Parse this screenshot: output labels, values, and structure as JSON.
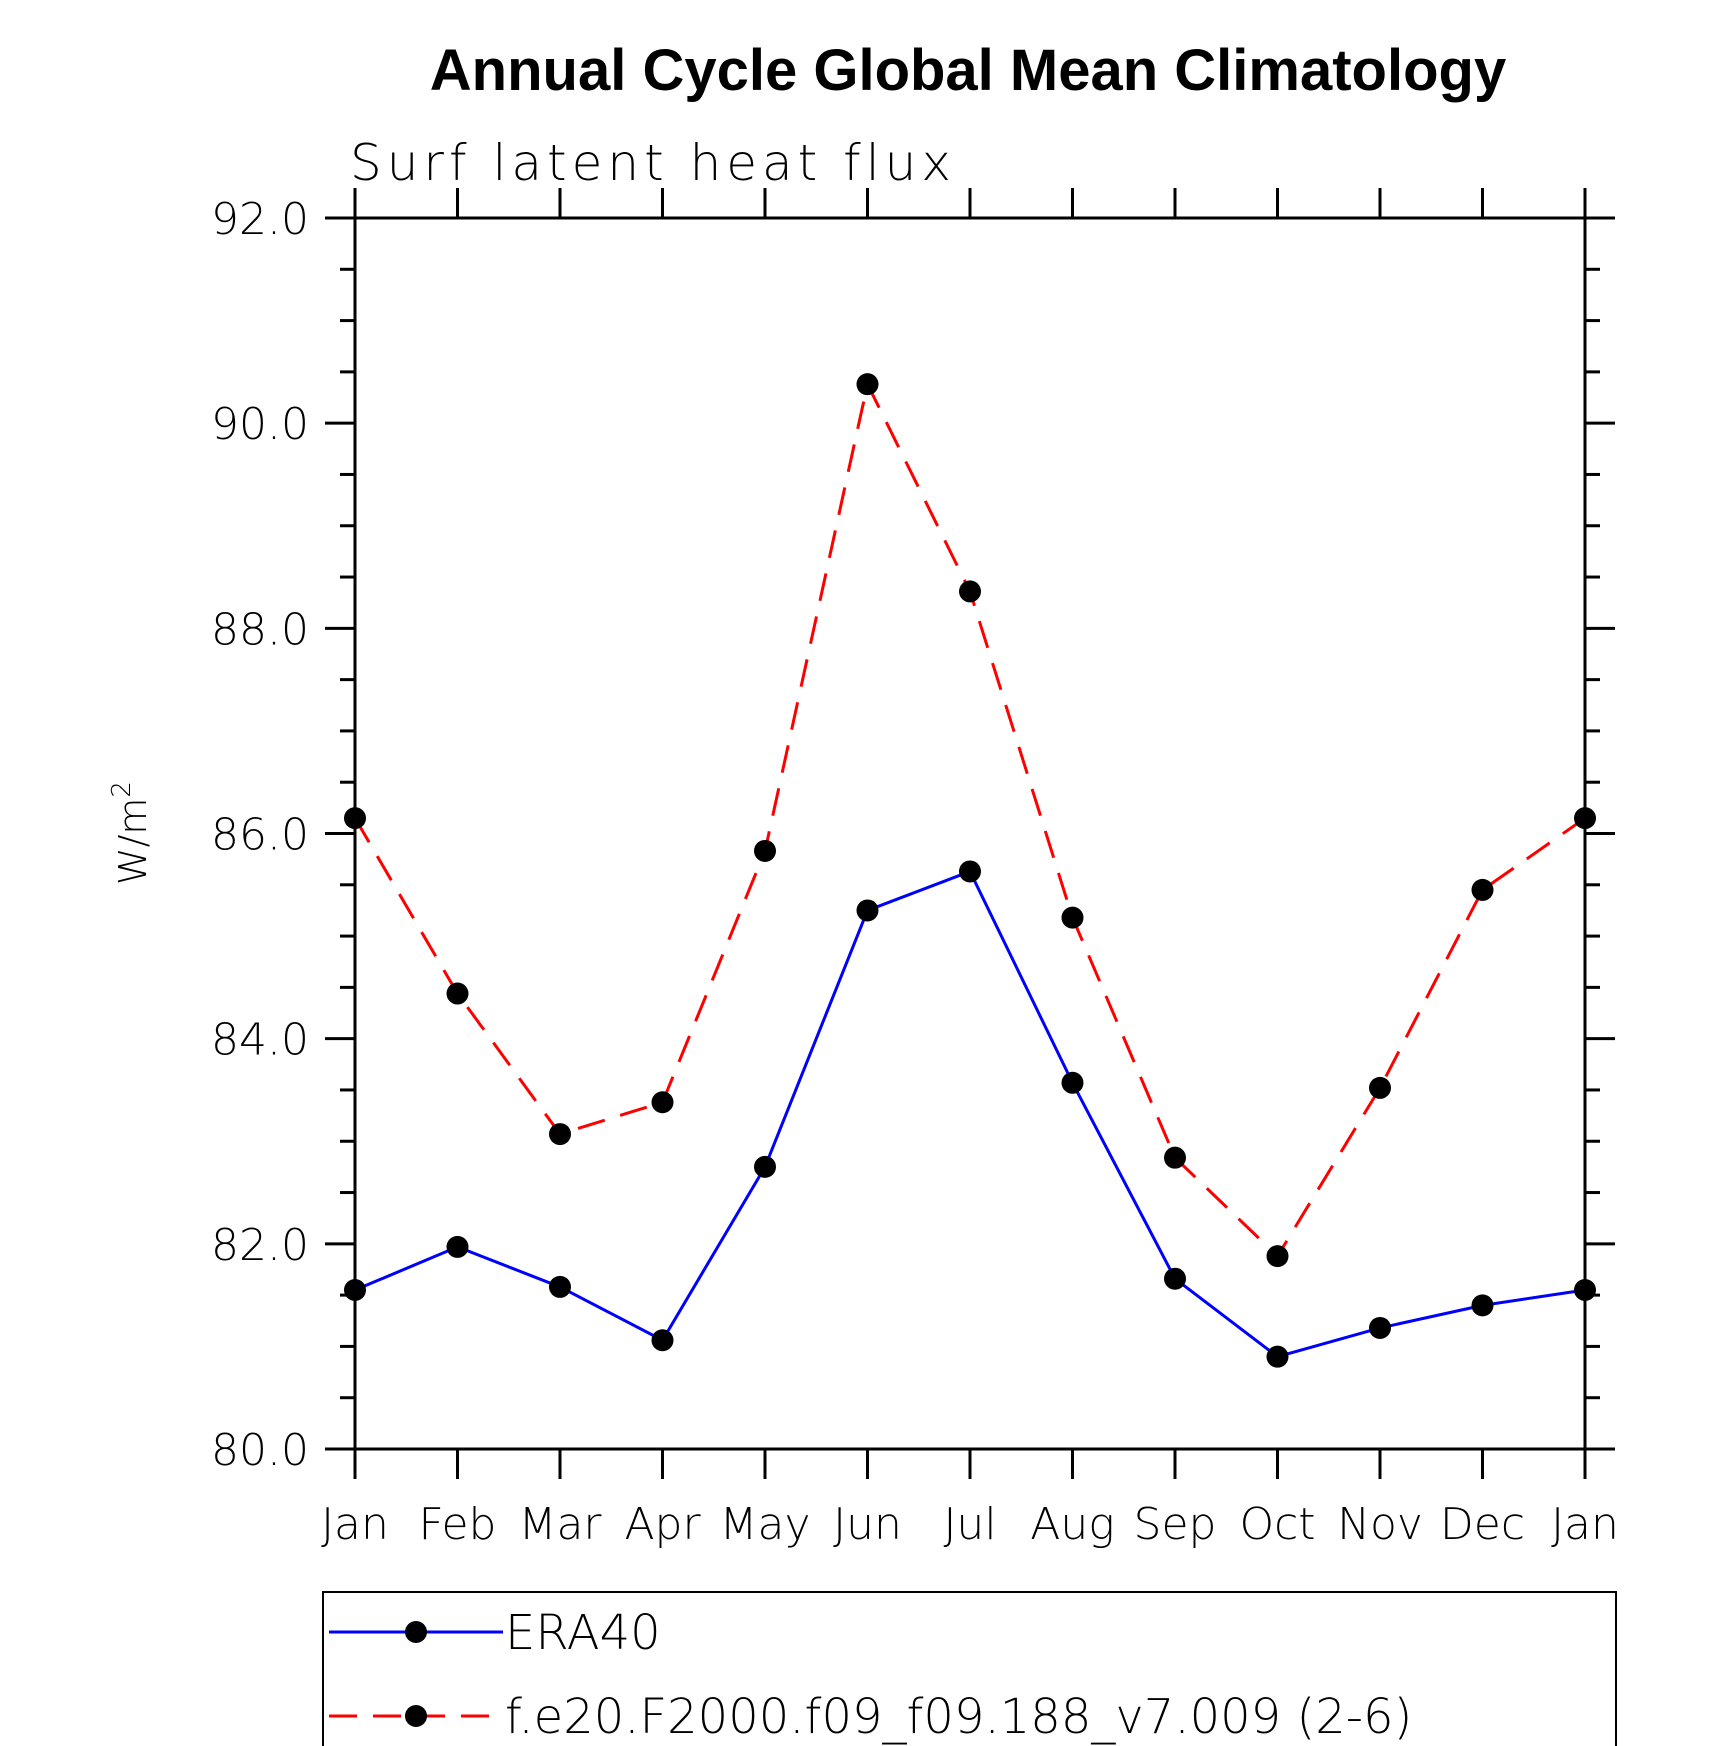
{
  "chart_data": {
    "type": "line",
    "title": "Annual Cycle Global Mean Climatology",
    "subtitle": "Surf latent heat flux",
    "xlabel": "",
    "ylabel": "W/m",
    "ylabel_superscript": "2",
    "categories": [
      "Jan",
      "Feb",
      "Mar",
      "Apr",
      "May",
      "Jun",
      "Jul",
      "Aug",
      "Sep",
      "Oct",
      "Nov",
      "Dec",
      "Jan"
    ],
    "ylim": [
      80.0,
      92.0
    ],
    "yticks": [
      "80.0",
      "82.0",
      "84.0",
      "86.0",
      "88.0",
      "90.0",
      "92.0"
    ],
    "grid": false,
    "legend_position": "bottom",
    "series": [
      {
        "name": "ERA40",
        "color": "#0000ff",
        "line_style": "solid",
        "marker": "filled-circle",
        "values": [
          81.55,
          81.97,
          81.58,
          81.06,
          82.75,
          85.25,
          85.63,
          83.57,
          81.66,
          80.9,
          81.18,
          81.4,
          81.55
        ]
      },
      {
        "name": "f.e20.F2000.f09_f09.188_v7.009 (2-6)",
        "color": "#ff0000",
        "line_style": "dashed",
        "marker": "filled-circle",
        "values": [
          86.15,
          84.44,
          83.07,
          83.38,
          85.83,
          90.38,
          88.36,
          85.18,
          82.84,
          81.88,
          83.52,
          85.45,
          86.15
        ]
      }
    ]
  }
}
